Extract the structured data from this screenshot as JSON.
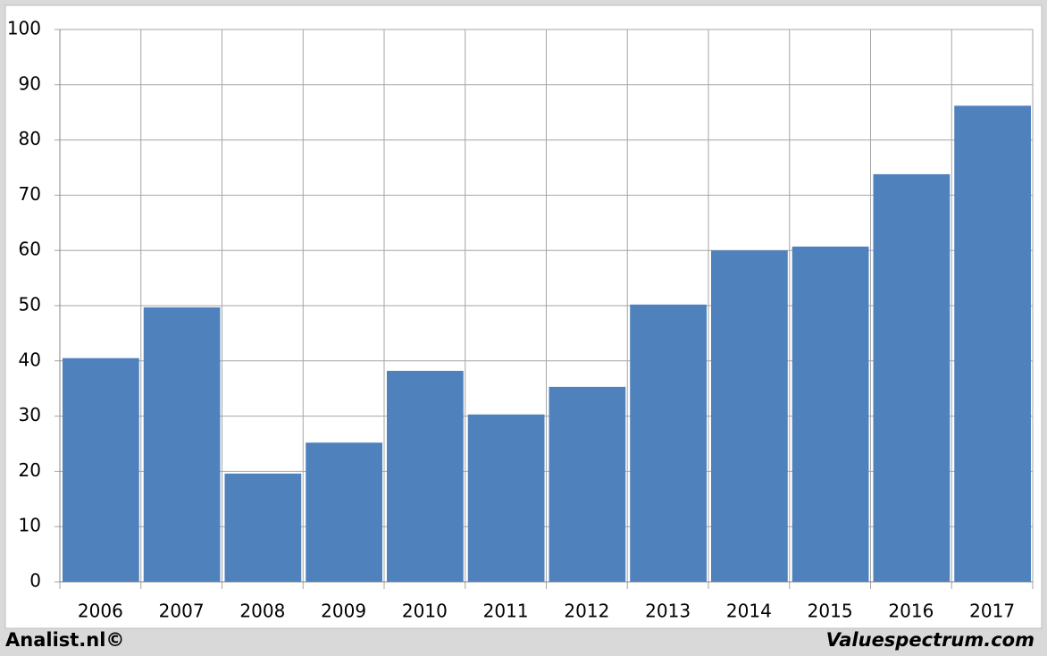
{
  "chart_data": {
    "type": "bar",
    "categories": [
      "2006",
      "2007",
      "2008",
      "2009",
      "2010",
      "2011",
      "2012",
      "2013",
      "2014",
      "2015",
      "2016",
      "2017"
    ],
    "values": [
      40.5,
      49.7,
      19.6,
      25.2,
      38.2,
      30.3,
      35.3,
      50.2,
      60.0,
      60.7,
      73.8,
      86.2
    ],
    "color": "#4f81bd",
    "ylim": [
      0,
      100
    ],
    "yticks": [
      0,
      10,
      20,
      30,
      40,
      50,
      60,
      70,
      80,
      90,
      100
    ],
    "grid": true,
    "category_grid": true,
    "footer_left": "Analist.nl©",
    "footer_right": "Valuespectrum.com"
  }
}
